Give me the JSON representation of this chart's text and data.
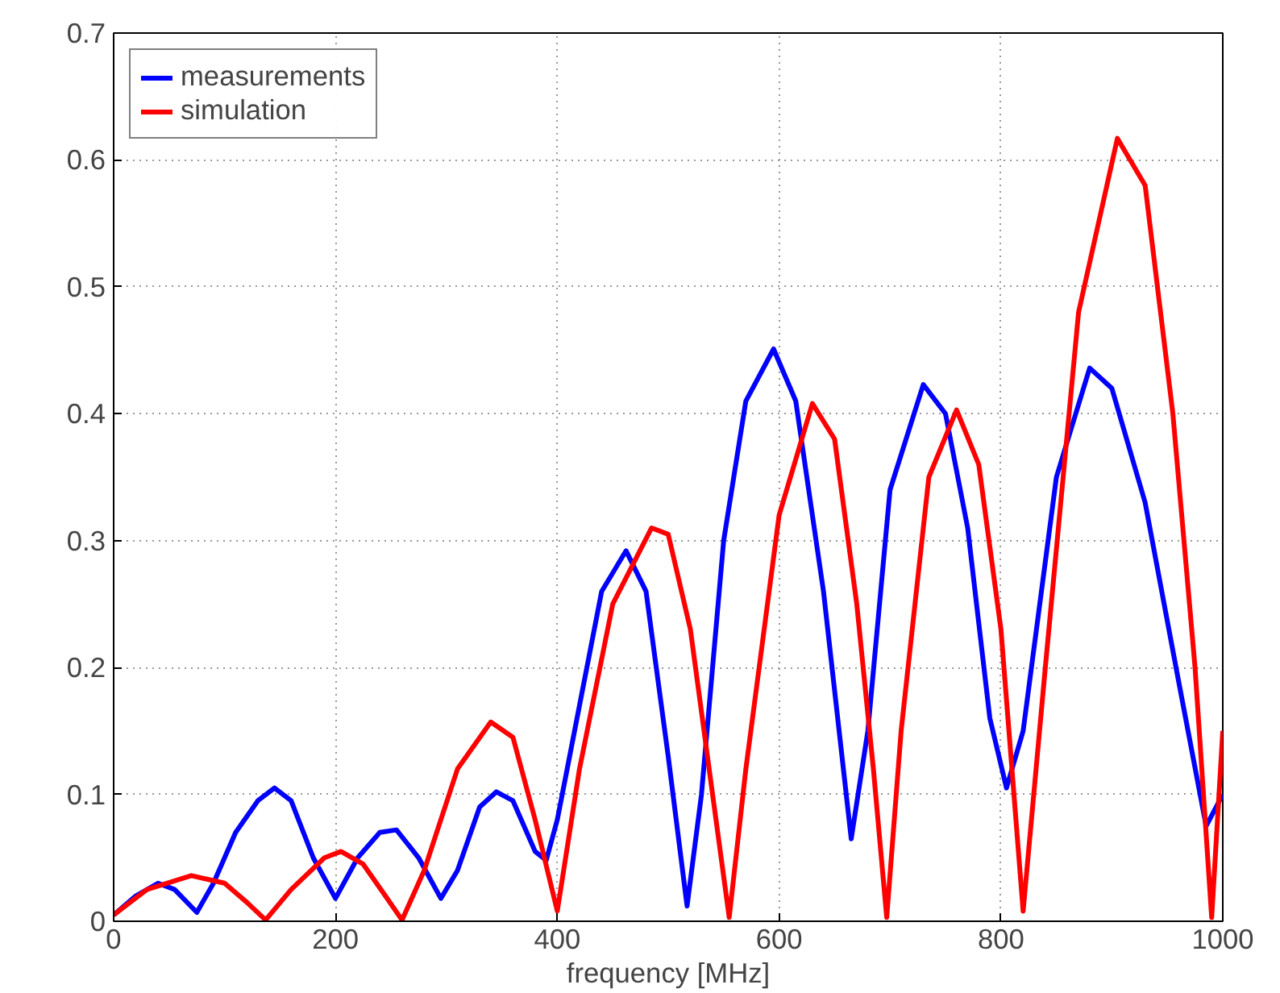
{
  "chart_data": {
    "type": "line",
    "xlabel": "frequency [MHz]",
    "xlim": [
      0,
      1000
    ],
    "xticks": [
      0,
      200,
      400,
      600,
      800,
      1000
    ],
    "ylim": [
      0,
      0.7
    ],
    "yticks": [
      0,
      0.1,
      0.2,
      0.3,
      0.4,
      0.5,
      0.6,
      0.7
    ],
    "grid": true,
    "legend": "top left",
    "line_style": "solid",
    "series": [
      {
        "name": "measurements",
        "color": "#0000ff",
        "x": [
          0,
          20,
          40,
          55,
          75,
          90,
          110,
          130,
          145,
          160,
          180,
          200,
          220,
          240,
          255,
          275,
          295,
          310,
          330,
          345,
          360,
          380,
          390,
          400,
          420,
          440,
          462,
          480,
          500,
          517,
          530,
          550,
          570,
          595,
          615,
          640,
          665,
          680,
          700,
          730,
          750,
          770,
          790,
          805,
          820,
          850,
          880,
          900,
          930,
          960,
          985,
          1000
        ],
        "values": [
          0.005,
          0.02,
          0.03,
          0.025,
          0.007,
          0.03,
          0.07,
          0.095,
          0.105,
          0.095,
          0.05,
          0.018,
          0.05,
          0.07,
          0.072,
          0.05,
          0.018,
          0.04,
          0.09,
          0.102,
          0.095,
          0.055,
          0.048,
          0.08,
          0.17,
          0.26,
          0.292,
          0.26,
          0.13,
          0.012,
          0.1,
          0.3,
          0.41,
          0.451,
          0.41,
          0.26,
          0.065,
          0.15,
          0.34,
          0.423,
          0.4,
          0.31,
          0.16,
          0.105,
          0.15,
          0.35,
          0.436,
          0.42,
          0.33,
          0.19,
          0.075,
          0.1
        ]
      },
      {
        "name": "simulation",
        "color": "#ff0000",
        "x": [
          0,
          30,
          70,
          100,
          120,
          137,
          160,
          190,
          205,
          225,
          245,
          260,
          280,
          310,
          340,
          360,
          380,
          400,
          420,
          450,
          485,
          500,
          520,
          540,
          555,
          570,
          600,
          630,
          650,
          670,
          685,
          697,
          710,
          735,
          760,
          780,
          800,
          820,
          840,
          870,
          905,
          930,
          955,
          975,
          990,
          1000
        ],
        "values": [
          0.005,
          0.025,
          0.036,
          0.03,
          0.015,
          0.001,
          0.025,
          0.05,
          0.055,
          0.045,
          0.02,
          0.001,
          0.04,
          0.12,
          0.157,
          0.145,
          0.08,
          0.008,
          0.12,
          0.25,
          0.31,
          0.305,
          0.23,
          0.1,
          0.003,
          0.12,
          0.32,
          0.408,
          0.38,
          0.25,
          0.12,
          0.003,
          0.15,
          0.35,
          0.403,
          0.36,
          0.23,
          0.008,
          0.2,
          0.48,
          0.617,
          0.58,
          0.4,
          0.2,
          0.003,
          0.15
        ]
      }
    ]
  }
}
